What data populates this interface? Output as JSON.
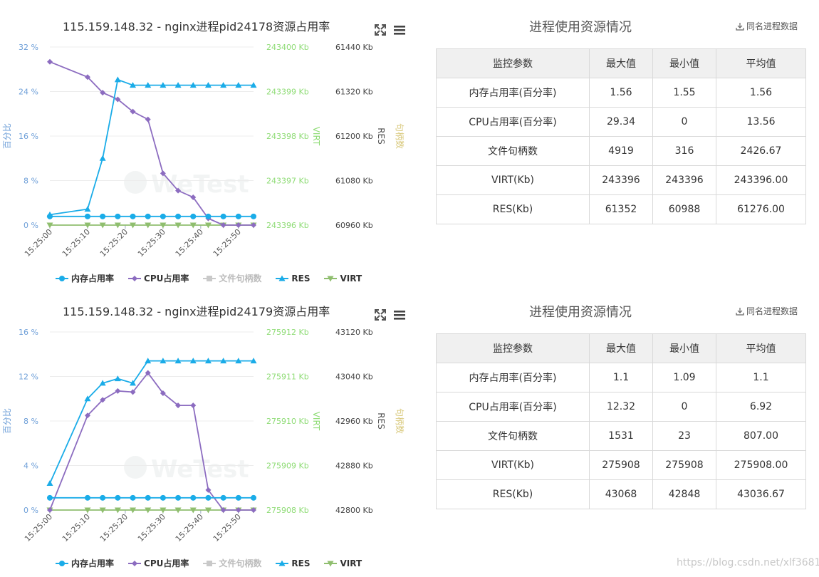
{
  "legend": [
    {
      "label": "内存占用率",
      "color": "#1aace8",
      "marker": "circle",
      "enabled": true
    },
    {
      "label": "CPU占用率",
      "color": "#8c6cc0",
      "marker": "diamond",
      "enabled": true
    },
    {
      "label": "文件句柄数",
      "color": "#c9c9c9",
      "marker": "square",
      "enabled": false
    },
    {
      "label": "RES",
      "color": "#1aace8",
      "marker": "triangle",
      "enabled": true
    },
    {
      "label": "VIRT",
      "color": "#8fbe6e",
      "marker": "triangle-down",
      "enabled": true
    }
  ],
  "axis_titles": {
    "left": "百分比",
    "virt": "VIRT",
    "res": "RES",
    "handles": "句柄数"
  },
  "colors": {
    "mem": "#1aace8",
    "cpu": "#8c6cc0",
    "res": "#1aace8",
    "virt": "#8fbe6e",
    "virt_axis": "#8fdc76",
    "left_axis": "#6e9fd8",
    "handles_axis": "#d8c87a"
  },
  "watermark": "https://blog.csdn.net/xlf3681",
  "logo_text": "WeTest",
  "panels": [
    {
      "chart_title": "115.159.148.32 - nginx进程pid24178资源占用率",
      "table": {
        "title": "进程使用资源情况",
        "download_label": "同名进程数据",
        "headers": [
          "监控参数",
          "最大值",
          "最小值",
          "平均值"
        ],
        "rows": [
          [
            "内存占用率(百分率)",
            "1.56",
            "1.55",
            "1.56"
          ],
          [
            "CPU占用率(百分率)",
            "29.34",
            "0",
            "13.56"
          ],
          [
            "文件句柄数",
            "4919",
            "316",
            "2426.67"
          ],
          [
            "VIRT(Kb)",
            "243396",
            "243396",
            "243396.00"
          ],
          [
            "RES(Kb)",
            "61352",
            "60988",
            "61276.00"
          ]
        ]
      },
      "chart_data": {
        "type": "line",
        "x": [
          "15:25:00",
          "15:25:02",
          "15:25:04",
          "15:25:06",
          "15:25:08",
          "15:25:10",
          "15:25:12",
          "15:25:14",
          "15:25:16",
          "15:25:18",
          "15:25:20",
          "15:25:22",
          "15:25:24",
          "15:25:26",
          "15:25:28",
          "15:25:30",
          "15:25:32",
          "15:25:34",
          "15:25:36",
          "15:25:38",
          "15:25:40",
          "15:25:42",
          "15:25:44",
          "15:25:46",
          "15:25:48",
          "15:25:50",
          "15:25:52",
          "15:25:54"
        ],
        "x_tick_labels": [
          "15:25:00",
          "15:25:10",
          "15:25:20",
          "15:25:30",
          "15:25:40",
          "15:25:50"
        ],
        "axes": {
          "left": {
            "ticks": [
              "0 %",
              "8 %",
              "16 %",
              "24 %",
              "32 %"
            ],
            "range": [
              0,
              32
            ]
          },
          "virt": {
            "ticks": [
              "243396 Kb",
              "243397 Kb",
              "243398 Kb",
              "243399 Kb",
              "243400 Kb"
            ],
            "range": [
              243396,
              243400
            ]
          },
          "res": {
            "ticks": [
              "60960 Kb",
              "61080 Kb",
              "61200 Kb",
              "61320 Kb",
              "61440 Kb"
            ],
            "range": [
              60960,
              61440
            ]
          }
        },
        "series": [
          {
            "name": "内存占用率",
            "axis": "left",
            "points": [
              [
                "15:25:00",
                1.56
              ],
              [
                "15:25:10",
                1.56
              ],
              [
                "15:25:14",
                1.56
              ],
              [
                "15:25:18",
                1.56
              ],
              [
                "15:25:22",
                1.56
              ],
              [
                "15:25:26",
                1.56
              ],
              [
                "15:25:30",
                1.56
              ],
              [
                "15:25:34",
                1.56
              ],
              [
                "15:25:38",
                1.56
              ],
              [
                "15:25:42",
                1.56
              ],
              [
                "15:25:46",
                1.56
              ],
              [
                "15:25:50",
                1.56
              ],
              [
                "15:25:54",
                1.56
              ]
            ]
          },
          {
            "name": "CPU占用率",
            "axis": "left",
            "points": [
              [
                "15:25:00",
                29.34
              ],
              [
                "15:25:10",
                26.6
              ],
              [
                "15:25:14",
                23.8
              ],
              [
                "15:25:18",
                22.6
              ],
              [
                "15:25:22",
                20.4
              ],
              [
                "15:25:26",
                19.0
              ],
              [
                "15:25:30",
                9.3
              ],
              [
                "15:25:34",
                6.2
              ],
              [
                "15:25:38",
                5.0
              ],
              [
                "15:25:42",
                1.2
              ],
              [
                "15:25:46",
                0
              ],
              [
                "15:25:50",
                0
              ],
              [
                "15:25:54",
                0
              ]
            ]
          },
          {
            "name": "RES",
            "axis": "res",
            "points": [
              [
                "15:25:00",
                60988
              ],
              [
                "15:25:10",
                61003
              ],
              [
                "15:25:14",
                61140
              ],
              [
                "15:25:18",
                61352
              ],
              [
                "15:25:22",
                61337
              ],
              [
                "15:25:26",
                61337
              ],
              [
                "15:25:30",
                61337
              ],
              [
                "15:25:34",
                61337
              ],
              [
                "15:25:38",
                61337
              ],
              [
                "15:25:42",
                61337
              ],
              [
                "15:25:46",
                61337
              ],
              [
                "15:25:50",
                61337
              ],
              [
                "15:25:54",
                61337
              ]
            ]
          },
          {
            "name": "VIRT",
            "axis": "virt",
            "points": [
              [
                "15:25:00",
                243396
              ],
              [
                "15:25:10",
                243396
              ],
              [
                "15:25:14",
                243396
              ],
              [
                "15:25:18",
                243396
              ],
              [
                "15:25:22",
                243396
              ],
              [
                "15:25:26",
                243396
              ],
              [
                "15:25:30",
                243396
              ],
              [
                "15:25:34",
                243396
              ],
              [
                "15:25:38",
                243396
              ],
              [
                "15:25:42",
                243396
              ],
              [
                "15:25:46",
                243396
              ],
              [
                "15:25:50",
                243396
              ],
              [
                "15:25:54",
                243396
              ]
            ]
          }
        ]
      }
    },
    {
      "chart_title": "115.159.148.32 - nginx进程pid24179资源占用率",
      "table": {
        "title": "进程使用资源情况",
        "download_label": "同名进程数据",
        "headers": [
          "监控参数",
          "最大值",
          "最小值",
          "平均值"
        ],
        "rows": [
          [
            "内存占用率(百分率)",
            "1.1",
            "1.09",
            "1.1"
          ],
          [
            "CPU占用率(百分率)",
            "12.32",
            "0",
            "6.92"
          ],
          [
            "文件句柄数",
            "1531",
            "23",
            "807.00"
          ],
          [
            "VIRT(Kb)",
            "275908",
            "275908",
            "275908.00"
          ],
          [
            "RES(Kb)",
            "43068",
            "42848",
            "43036.67"
          ]
        ]
      },
      "chart_data": {
        "type": "line",
        "x": [
          "15:25:00",
          "15:25:02",
          "15:25:04",
          "15:25:06",
          "15:25:08",
          "15:25:10",
          "15:25:12",
          "15:25:14",
          "15:25:16",
          "15:25:18",
          "15:25:20",
          "15:25:22",
          "15:25:24",
          "15:25:26",
          "15:25:28",
          "15:25:30",
          "15:25:32",
          "15:25:34",
          "15:25:36",
          "15:25:38",
          "15:25:40",
          "15:25:42",
          "15:25:44",
          "15:25:46",
          "15:25:48",
          "15:25:50",
          "15:25:52",
          "15:25:54"
        ],
        "x_tick_labels": [
          "15:25:00",
          "15:25:10",
          "15:25:20",
          "15:25:30",
          "15:25:40",
          "15:25:50"
        ],
        "axes": {
          "left": {
            "ticks": [
              "0 %",
              "4 %",
              "8 %",
              "12 %",
              "16 %"
            ],
            "range": [
              0,
              16
            ]
          },
          "virt": {
            "ticks": [
              "275908 Kb",
              "275909 Kb",
              "275910 Kb",
              "275911 Kb",
              "275912 Kb"
            ],
            "range": [
              275908,
              275912
            ]
          },
          "res": {
            "ticks": [
              "42800 Kb",
              "42880 Kb",
              "42960 Kb",
              "43040 Kb",
              "43120 Kb"
            ],
            "range": [
              42800,
              43120
            ]
          }
        },
        "series": [
          {
            "name": "内存占用率",
            "axis": "left",
            "points": [
              [
                "15:25:00",
                1.1
              ],
              [
                "15:25:10",
                1.1
              ],
              [
                "15:25:14",
                1.1
              ],
              [
                "15:25:18",
                1.1
              ],
              [
                "15:25:22",
                1.1
              ],
              [
                "15:25:26",
                1.1
              ],
              [
                "15:25:30",
                1.1
              ],
              [
                "15:25:34",
                1.1
              ],
              [
                "15:25:38",
                1.1
              ],
              [
                "15:25:42",
                1.1
              ],
              [
                "15:25:46",
                1.1
              ],
              [
                "15:25:50",
                1.1
              ],
              [
                "15:25:54",
                1.1
              ]
            ]
          },
          {
            "name": "CPU占用率",
            "axis": "left",
            "points": [
              [
                "15:25:00",
                0
              ],
              [
                "15:25:10",
                8.5
              ],
              [
                "15:25:14",
                9.9
              ],
              [
                "15:25:18",
                10.7
              ],
              [
                "15:25:22",
                10.6
              ],
              [
                "15:25:26",
                12.32
              ],
              [
                "15:25:30",
                10.5
              ],
              [
                "15:25:34",
                9.4
              ],
              [
                "15:25:38",
                9.4
              ],
              [
                "15:25:42",
                1.8
              ],
              [
                "15:25:46",
                0
              ],
              [
                "15:25:50",
                0
              ],
              [
                "15:25:54",
                0
              ]
            ]
          },
          {
            "name": "RES",
            "axis": "res",
            "points": [
              [
                "15:25:00",
                42848
              ],
              [
                "15:25:10",
                43000
              ],
              [
                "15:25:14",
                43028
              ],
              [
                "15:25:18",
                43036
              ],
              [
                "15:25:22",
                43028
              ],
              [
                "15:25:26",
                43068
              ],
              [
                "15:25:30",
                43068
              ],
              [
                "15:25:34",
                43068
              ],
              [
                "15:25:38",
                43068
              ],
              [
                "15:25:42",
                43068
              ],
              [
                "15:25:46",
                43068
              ],
              [
                "15:25:50",
                43068
              ],
              [
                "15:25:54",
                43068
              ]
            ]
          },
          {
            "name": "VIRT",
            "axis": "virt",
            "points": [
              [
                "15:25:00",
                275908
              ],
              [
                "15:25:10",
                275908
              ],
              [
                "15:25:14",
                275908
              ],
              [
                "15:25:18",
                275908
              ],
              [
                "15:25:22",
                275908
              ],
              [
                "15:25:26",
                275908
              ],
              [
                "15:25:30",
                275908
              ],
              [
                "15:25:34",
                275908
              ],
              [
                "15:25:38",
                275908
              ],
              [
                "15:25:42",
                275908
              ],
              [
                "15:25:46",
                275908
              ],
              [
                "15:25:50",
                275908
              ],
              [
                "15:25:54",
                275908
              ]
            ]
          }
        ]
      }
    }
  ]
}
